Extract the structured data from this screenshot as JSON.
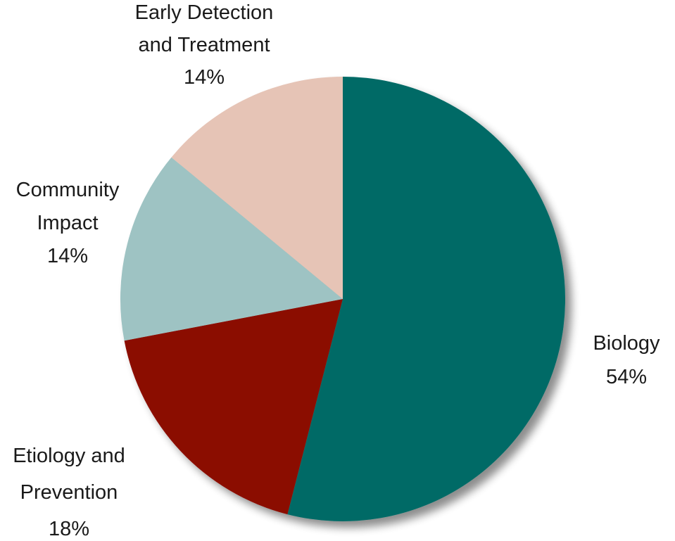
{
  "chart_data": {
    "type": "pie",
    "title": "",
    "start": "12 o'clock",
    "direction": "clockwise",
    "slices": [
      {
        "name": "Biology",
        "value": 54,
        "label_lines": [
          "Biology",
          "54%"
        ],
        "color": "#006B66"
      },
      {
        "name": "Etiology and Prevention",
        "value": 18,
        "label_lines": [
          "Etiology and",
          "Prevention",
          "18%"
        ],
        "color": "#8B1106"
      },
      {
        "name": "Community Impact",
        "value": 14,
        "label_lines": [
          "Community",
          "Impact",
          "14%"
        ],
        "color": "#9EC3C3"
      },
      {
        "name": "Early Detection and Treatment",
        "value": 14,
        "label_lines": [
          "Early Detection",
          "and Treatment",
          "14%"
        ],
        "color": "#E6C4B6"
      }
    ]
  }
}
